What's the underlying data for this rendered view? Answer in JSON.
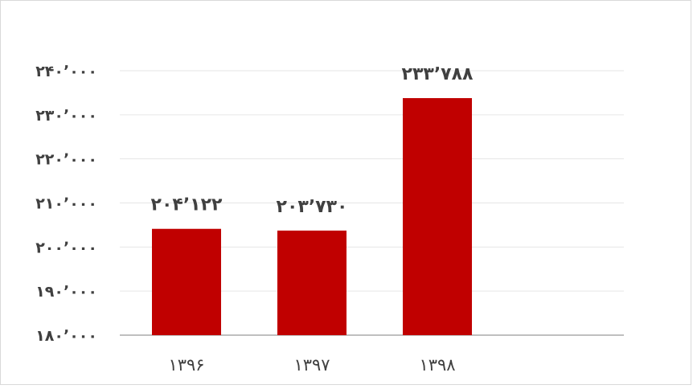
{
  "chart_data": {
    "type": "bar",
    "title": "",
    "xlabel": "",
    "ylabel": "",
    "categories": [
      "۱۳۹۶",
      "۱۳۹۷",
      "۱۳۹۸"
    ],
    "values": [
      204122,
      203730,
      233788
    ],
    "data_labels": [
      "۲۰۴٬۱۲۲",
      "۲۰۳٬۷۳۰",
      "۲۳۳٬۷۸۸"
    ],
    "ylim": [
      180000,
      240000
    ],
    "yticks": [
      180000,
      190000,
      200000,
      210000,
      220000,
      230000,
      240000
    ],
    "ytick_labels": [
      "۱۸۰٬۰۰۰",
      "۱۹۰٬۰۰۰",
      "۲۰۰٬۰۰۰",
      "۲۱۰٬۰۰۰",
      "۲۲۰٬۰۰۰",
      "۲۳۰٬۰۰۰",
      "۲۴۰٬۰۰۰"
    ],
    "grid": true,
    "legend": "none",
    "colors": {
      "bar": "#c00000",
      "grid": "#e6e6e6",
      "axis": "#bfbfbf",
      "text": "#404040"
    }
  }
}
